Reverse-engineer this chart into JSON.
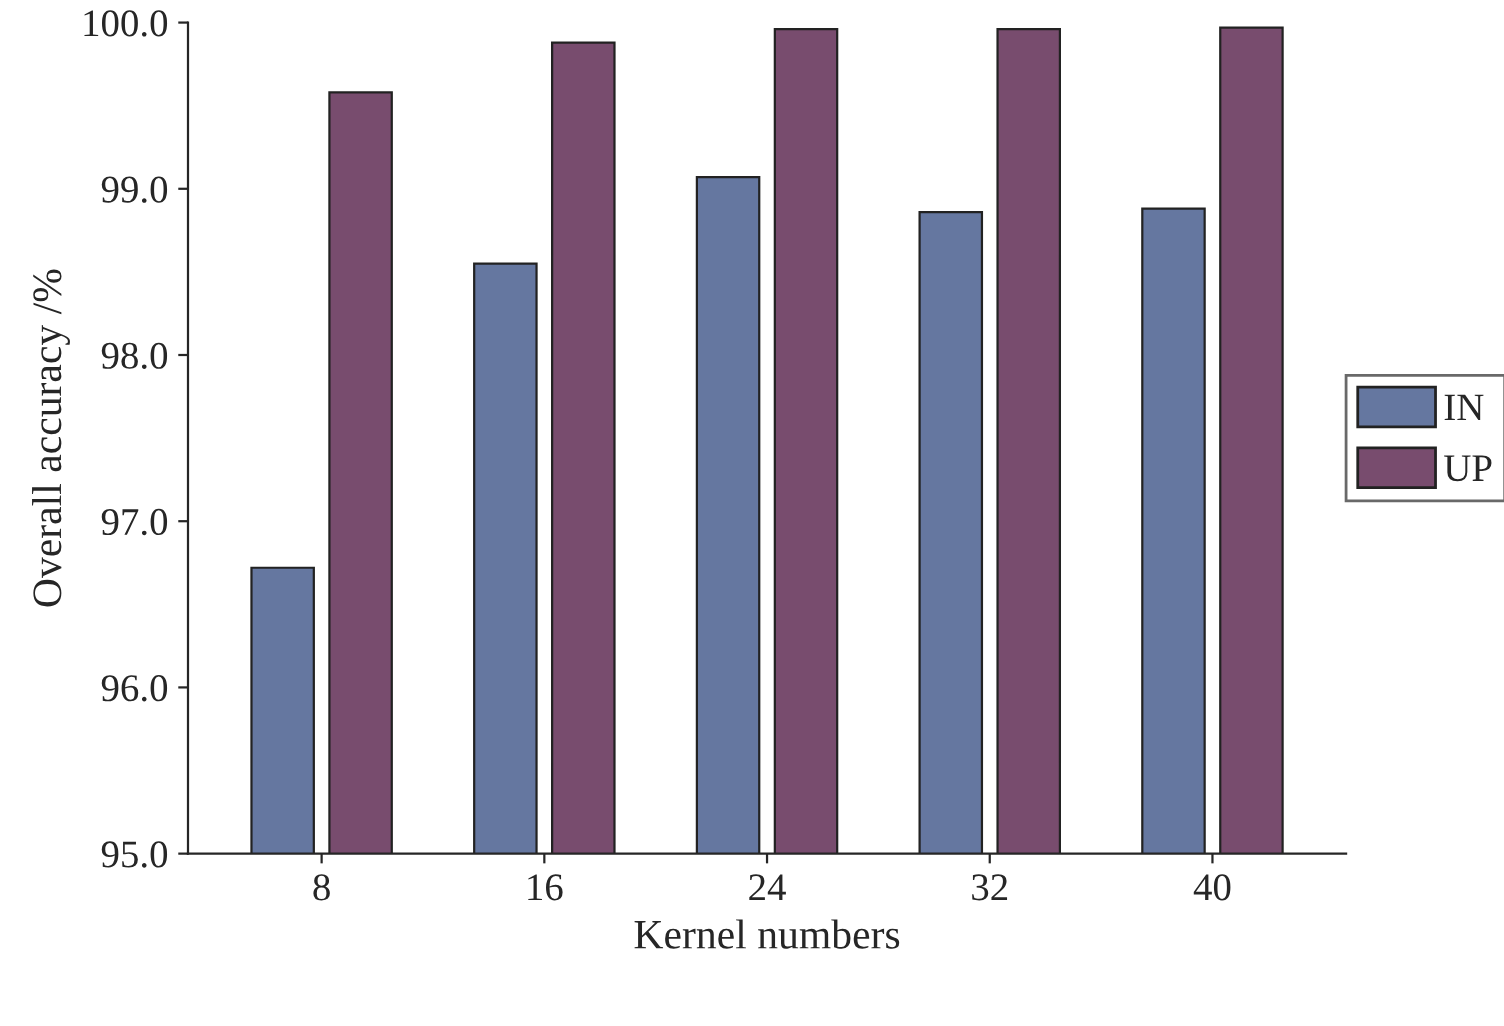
{
  "chart_data": {
    "type": "bar",
    "xlabel": "Kernel numbers",
    "ylabel": "Overall accuracy /%",
    "categories": [
      "8",
      "16",
      "24",
      "32",
      "40"
    ],
    "series": [
      {
        "name": "IN",
        "color": "#6577a0",
        "values": [
          96.72,
          98.55,
          99.07,
          98.86,
          98.88
        ]
      },
      {
        "name": "UP",
        "color": "#784c6e",
        "values": [
          99.58,
          99.88,
          99.96,
          99.96,
          99.97
        ]
      }
    ],
    "ylim": [
      95,
      100
    ],
    "yticks": [
      {
        "value": 95,
        "label": "95.0"
      },
      {
        "value": 96,
        "label": "96.0"
      },
      {
        "value": 97,
        "label": "97.0"
      },
      {
        "value": 98,
        "label": "98.0"
      },
      {
        "value": 99,
        "label": "99.0"
      },
      {
        "value": 100,
        "label": "100.0"
      }
    ],
    "grid": false,
    "legend": "right"
  }
}
